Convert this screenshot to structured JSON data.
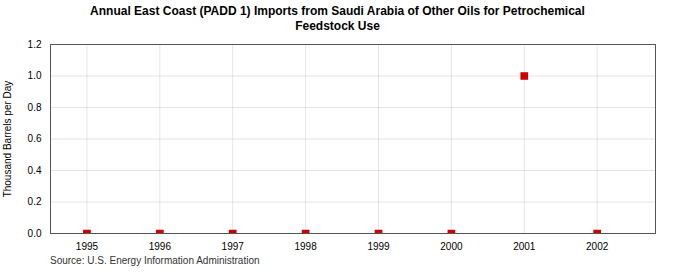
{
  "chart_data": {
    "type": "scatter",
    "title": "Annual East Coast (PADD 1) Imports from Saudi Arabia of Other Oils for Petrochemical\nFeedstock Use",
    "ylabel": "Thousand Barrels per Day",
    "source": "Source: U.S. Energy Information Administration",
    "x": [
      1995,
      1996,
      1997,
      1998,
      1999,
      2000,
      2001,
      2002
    ],
    "values": [
      0,
      0,
      0,
      0,
      0,
      0,
      1.0,
      0
    ],
    "color": "#cc0000",
    "marker": "square",
    "xlim": [
      1994.5,
      2002.8
    ],
    "ylim": [
      0,
      1.2
    ],
    "xticks": [
      1995,
      1996,
      1997,
      1998,
      1999,
      2000,
      2001,
      2002
    ],
    "yticks": [
      {
        "value": 0,
        "label": "0.0"
      },
      0.2,
      0.4,
      0.6,
      0.8,
      {
        "value": 1,
        "label": "1.0"
      },
      1.2
    ],
    "grid": true
  }
}
